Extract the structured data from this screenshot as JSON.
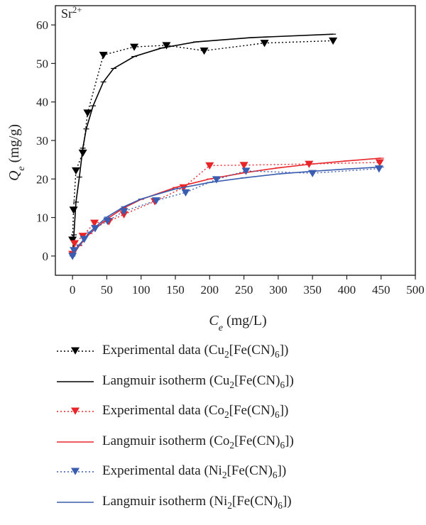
{
  "chart_data": {
    "type": "line",
    "annotation": "Sr2+",
    "xlabel": "Ce (mg/L)",
    "ylabel": "Qe (mg/g)",
    "xlim": [
      -25,
      500
    ],
    "ylim": [
      -5,
      65
    ],
    "xticks": [
      "0",
      "50",
      "100",
      "150",
      "200",
      "250",
      "300",
      "350",
      "400",
      "450",
      "500"
    ],
    "yticks": [
      "0",
      "10",
      "20",
      "30",
      "40",
      "50",
      "60"
    ],
    "grid": false,
    "legend_position": "bottom",
    "series": [
      {
        "name": "Experimental data (Cu2[Fe(CN)6])",
        "style": "dotted-marker",
        "color": "#000000",
        "points": [
          [
            0,
            4.2
          ],
          [
            1.5,
            12
          ],
          [
            5,
            22.2
          ],
          [
            15,
            26.8
          ],
          [
            22,
            37.2
          ],
          [
            45,
            52.2
          ],
          [
            90,
            54.3
          ],
          [
            137,
            54.7
          ],
          [
            192,
            53.3
          ],
          [
            280,
            55.3
          ],
          [
            380,
            55.9
          ]
        ]
      },
      {
        "name": "Langmuir isotherm (Cu2[Fe(CN)6])",
        "style": "solid",
        "color": "#000000",
        "points": [
          [
            0,
            0
          ],
          [
            2,
            5.5
          ],
          [
            5,
            14
          ],
          [
            10,
            20.5
          ],
          [
            15,
            28
          ],
          [
            20,
            33
          ],
          [
            30,
            39
          ],
          [
            45,
            45.2
          ],
          [
            60,
            48.7
          ],
          [
            90,
            51.8
          ],
          [
            130,
            54
          ],
          [
            180,
            55.6
          ],
          [
            260,
            56.7
          ],
          [
            380,
            57.6
          ]
        ]
      },
      {
        "name": "Experimental data (Co2[Fe(CN)6])",
        "style": "dotted-marker",
        "color": "#e8262a",
        "points": [
          [
            0,
            0.5
          ],
          [
            3,
            3.3
          ],
          [
            15,
            5.2
          ],
          [
            32,
            8.6
          ],
          [
            53,
            9
          ],
          [
            75,
            10.8
          ],
          [
            120,
            14.2
          ],
          [
            162,
            17.8
          ],
          [
            200,
            23.5
          ],
          [
            250,
            23.6
          ],
          [
            345,
            23.9
          ],
          [
            448,
            24.3
          ]
        ]
      },
      {
        "name": "Langmuir isotherm (Co2[Fe(CN)6])",
        "style": "solid",
        "color": "#e8262a",
        "points": [
          [
            0,
            0
          ],
          [
            10,
            2.7
          ],
          [
            25,
            5.8
          ],
          [
            50,
            9.6
          ],
          [
            75,
            12.5
          ],
          [
            100,
            14.7
          ],
          [
            150,
            17.8
          ],
          [
            200,
            20
          ],
          [
            250,
            21.6
          ],
          [
            300,
            22.9
          ],
          [
            350,
            23.9
          ],
          [
            400,
            24.7
          ],
          [
            450,
            25.4
          ]
        ]
      },
      {
        "name": "Experimental data (Ni2[Fe(CN)6])",
        "style": "dotted-marker",
        "color": "#3a5db0",
        "points": [
          [
            0,
            0
          ],
          [
            2,
            1.5
          ],
          [
            17,
            4.4
          ],
          [
            33,
            7.2
          ],
          [
            51,
            9.1
          ],
          [
            75,
            11.6
          ],
          [
            122,
            14.4
          ],
          [
            165,
            16.5
          ],
          [
            210,
            19.9
          ],
          [
            253,
            22.1
          ],
          [
            350,
            21.5
          ],
          [
            447,
            22.7
          ]
        ]
      },
      {
        "name": "Langmuir isotherm (Ni2[Fe(CN)6])",
        "style": "solid",
        "color": "#3a5db0",
        "points": [
          [
            0,
            0
          ],
          [
            10,
            2.9
          ],
          [
            25,
            6.2
          ],
          [
            50,
            10.1
          ],
          [
            75,
            12.8
          ],
          [
            100,
            14.8
          ],
          [
            150,
            17.4
          ],
          [
            200,
            19.1
          ],
          [
            250,
            20.3
          ],
          [
            300,
            21.3
          ],
          [
            350,
            22
          ],
          [
            400,
            22.6
          ],
          [
            450,
            23.1
          ]
        ]
      }
    ]
  },
  "legend": {
    "items": [
      {
        "label": "Experimental data (Cu2[Fe(CN)6])",
        "style": "dotted-marker",
        "color": "#000000"
      },
      {
        "label": "Langmuir isotherm (Cu2[Fe(CN)6])",
        "style": "solid",
        "color": "#000000"
      },
      {
        "label": "Experimental data (Co2[Fe(CN)6])",
        "style": "dotted-marker",
        "color": "#e8262a"
      },
      {
        "label": "Langmuir isotherm (Co2[Fe(CN)6])",
        "style": "solid",
        "color": "#e8262a"
      },
      {
        "label": "Experimental data (Ni2[Fe(CN)6])",
        "style": "dotted-marker",
        "color": "#3a5db0"
      },
      {
        "label": "Langmuir isotherm (Ni2[Fe(CN)6])",
        "style": "solid",
        "color": "#3a5db0"
      }
    ]
  }
}
